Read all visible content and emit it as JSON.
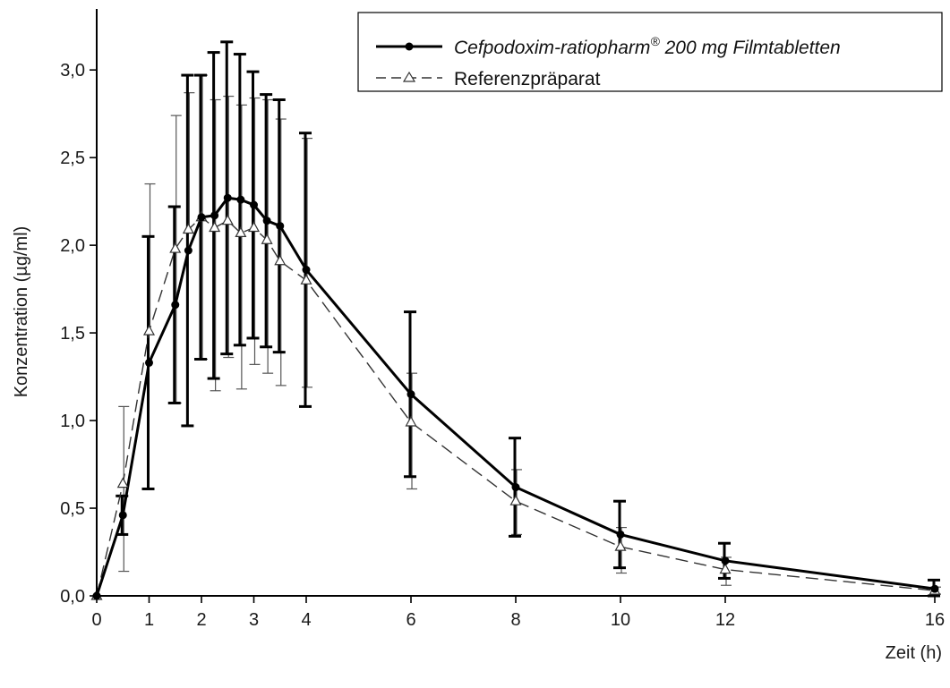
{
  "chart_data": {
    "type": "line",
    "title": "",
    "xlabel": "Zeit (h)",
    "ylabel": "Konzentration (µg/ml)",
    "xlim": [
      0,
      16
    ],
    "ylim": [
      0,
      3.2
    ],
    "x_ticks": [
      0,
      1,
      2,
      3,
      4,
      6,
      8,
      10,
      12,
      16
    ],
    "x_tick_labels": [
      "0",
      "1",
      "2",
      "3",
      "4",
      "6",
      "8",
      "10",
      "12",
      "16"
    ],
    "y_ticks": [
      0,
      0.5,
      1.0,
      1.5,
      2.0,
      2.5,
      3.0
    ],
    "y_tick_labels": [
      "0,0",
      "0,5",
      "1,0",
      "1,5",
      "2,0",
      "2,5",
      "3,0"
    ],
    "grid": false,
    "legend_position": "top-right",
    "series": [
      {
        "name": "Cefpodoxim-ratiopharm® 200 mg Filmtabletten",
        "legend_main": "Cefpodoxim-ratiopharm",
        "legend_sup": "®",
        "legend_rest": " 200 mg Filmtabletten",
        "line_style": "solid",
        "marker": "filled-circle",
        "color": "#000000",
        "x": [
          0,
          0.5,
          1,
          1.5,
          1.75,
          2,
          2.25,
          2.5,
          2.75,
          3,
          3.25,
          3.5,
          4,
          6,
          8,
          10,
          12,
          16
        ],
        "y": [
          0.0,
          0.46,
          1.33,
          1.66,
          1.97,
          2.16,
          2.17,
          2.27,
          2.26,
          2.23,
          2.14,
          2.11,
          1.86,
          1.15,
          0.62,
          0.35,
          0.2,
          0.04
        ],
        "error_upper": [
          null,
          0.11,
          0.72,
          0.56,
          1.0,
          0.81,
          0.93,
          0.89,
          0.83,
          0.76,
          0.72,
          0.72,
          0.78,
          0.47,
          0.28,
          0.19,
          0.1,
          0.05
        ]
      },
      {
        "name": "Referenzpräparat",
        "line_style": "dashed",
        "marker": "open-triangle",
        "color": "#333333",
        "x": [
          0,
          0.5,
          1,
          1.5,
          1.75,
          2,
          2.25,
          2.5,
          2.75,
          3,
          3.25,
          3.5,
          4,
          6,
          8,
          10,
          12,
          16
        ],
        "y": [
          0.0,
          0.64,
          1.51,
          1.98,
          2.09,
          2.16,
          2.1,
          2.14,
          2.07,
          2.1,
          2.03,
          1.91,
          1.8,
          0.99,
          0.54,
          0.28,
          0.15,
          0.03
        ],
        "error_upper": [
          null,
          0.44,
          0.84,
          0.76,
          0.78,
          0.81,
          0.73,
          0.71,
          0.73,
          0.74,
          0.8,
          0.81,
          0.81,
          0.28,
          0.18,
          0.11,
          0.07,
          0.02
        ],
        "error_lower": [
          null,
          0.5,
          null,
          0.88,
          null,
          0.81,
          0.93,
          0.78,
          0.89,
          0.78,
          0.76,
          0.71,
          0.61,
          0.38,
          0.19,
          0.15,
          0.09,
          0.02
        ]
      }
    ]
  }
}
